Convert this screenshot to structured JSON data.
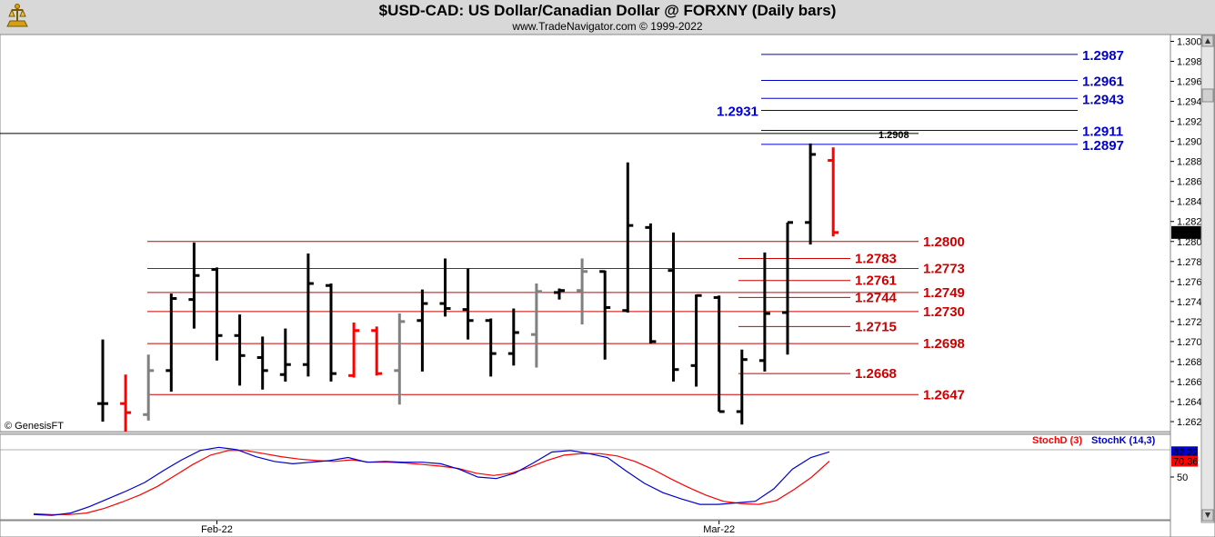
{
  "header": {
    "title": "$USD-CAD:  US Dollar/Canadian Dollar @ FORXNY  (Daily bars)",
    "subtitle": "www.TradeNavigator.com © 1999-2022"
  },
  "watermark": "© GenesisFT",
  "colors": {
    "bull": "#000000",
    "bear": "#ff0000",
    "neutral": "#808080",
    "resistance": "#0000cc",
    "support": "#cc0000",
    "stochD": "#ff0000",
    "stochK": "#0000cc"
  },
  "chart_data": {
    "type": "ohlc",
    "ylim": [
      1.261,
      1.3005
    ],
    "yticks": [
      "1.3000",
      "1.2980",
      "1.2960",
      "1.2940",
      "1.2920",
      "1.2900",
      "1.2880",
      "1.2860",
      "1.2840",
      "1.2820",
      "1.2800",
      "1.2780",
      "1.2760",
      "1.2740",
      "1.2720",
      "1.2700",
      "1.2680",
      "1.2660",
      "1.2640",
      "1.2620"
    ],
    "xlabels": [
      {
        "label": "Feb-22",
        "bar": 5
      },
      {
        "label": "Mar-22",
        "bar": 27
      }
    ],
    "last_price": "1.2809",
    "bars": [
      {
        "o": 1.2638,
        "h": 1.2702,
        "l": 1.262,
        "c": 1.2638,
        "col": "bull"
      },
      {
        "o": 1.2638,
        "h": 1.2667,
        "l": 1.261,
        "c": 1.2629,
        "col": "bear"
      },
      {
        "o": 1.2627,
        "h": 1.2687,
        "l": 1.2621,
        "c": 1.2671,
        "col": "neutral"
      },
      {
        "o": 1.2671,
        "h": 1.2748,
        "l": 1.265,
        "c": 1.2743,
        "col": "bull"
      },
      {
        "o": 1.2742,
        "h": 1.2799,
        "l": 1.2713,
        "c": 1.2766,
        "col": "bull"
      },
      {
        "o": 1.2772,
        "h": 1.2774,
        "l": 1.2681,
        "c": 1.2706,
        "col": "bull"
      },
      {
        "o": 1.2706,
        "h": 1.2727,
        "l": 1.2656,
        "c": 1.2686,
        "col": "bull"
      },
      {
        "o": 1.2684,
        "h": 1.2705,
        "l": 1.2652,
        "c": 1.2671,
        "col": "bull"
      },
      {
        "o": 1.2667,
        "h": 1.2713,
        "l": 1.266,
        "c": 1.2677,
        "col": "bull"
      },
      {
        "o": 1.2677,
        "h": 1.2788,
        "l": 1.2665,
        "c": 1.2758,
        "col": "bull"
      },
      {
        "o": 1.2756,
        "h": 1.2758,
        "l": 1.266,
        "c": 1.2668,
        "col": "bull"
      },
      {
        "o": 1.2666,
        "h": 1.2719,
        "l": 1.2664,
        "c": 1.2711,
        "col": "bear"
      },
      {
        "o": 1.2711,
        "h": 1.2715,
        "l": 1.2666,
        "c": 1.2668,
        "col": "bear"
      },
      {
        "o": 1.2671,
        "h": 1.2728,
        "l": 1.2637,
        "c": 1.272,
        "col": "neutral"
      },
      {
        "o": 1.2721,
        "h": 1.2752,
        "l": 1.267,
        "c": 1.2738,
        "col": "bull"
      },
      {
        "o": 1.2738,
        "h": 1.2783,
        "l": 1.2725,
        "c": 1.2733,
        "col": "bull"
      },
      {
        "o": 1.2732,
        "h": 1.2773,
        "l": 1.2702,
        "c": 1.2721,
        "col": "bull"
      },
      {
        "o": 1.2721,
        "h": 1.2723,
        "l": 1.2665,
        "c": 1.2688,
        "col": "bull"
      },
      {
        "o": 1.2688,
        "h": 1.2733,
        "l": 1.2676,
        "c": 1.2709,
        "col": "bull"
      },
      {
        "o": 1.2707,
        "h": 1.2758,
        "l": 1.2674,
        "c": 1.275,
        "col": "neutral"
      },
      {
        "o": 1.2749,
        "h": 1.2753,
        "l": 1.2742,
        "c": 1.2751,
        "col": "bull"
      },
      {
        "o": 1.2751,
        "h": 1.2783,
        "l": 1.2717,
        "c": 1.277,
        "col": "neutral"
      },
      {
        "o": 1.277,
        "h": 1.2771,
        "l": 1.2682,
        "c": 1.2734,
        "col": "bull"
      },
      {
        "o": 1.2731,
        "h": 1.2879,
        "l": 1.2729,
        "c": 1.2816,
        "col": "bull"
      },
      {
        "o": 1.2814,
        "h": 1.2818,
        "l": 1.2698,
        "c": 1.27,
        "col": "bull"
      },
      {
        "o": 1.2771,
        "h": 1.2809,
        "l": 1.266,
        "c": 1.2672,
        "col": "bull"
      },
      {
        "o": 1.2676,
        "h": 1.2747,
        "l": 1.2655,
        "c": 1.2746,
        "col": "bull"
      },
      {
        "o": 1.2744,
        "h": 1.2746,
        "l": 1.263,
        "c": 1.263,
        "col": "bull"
      },
      {
        "o": 1.263,
        "h": 1.2692,
        "l": 1.2617,
        "c": 1.2682,
        "col": "bull"
      },
      {
        "o": 1.2681,
        "h": 1.2789,
        "l": 1.267,
        "c": 1.2728,
        "col": "bull"
      },
      {
        "o": 1.2729,
        "h": 1.2819,
        "l": 1.2687,
        "c": 1.2819,
        "col": "bull"
      },
      {
        "o": 1.2819,
        "h": 1.2898,
        "l": 1.2797,
        "c": 1.2887,
        "col": "bull"
      },
      {
        "o": 1.2881,
        "h": 1.2894,
        "l": 1.2805,
        "c": 1.2809,
        "col": "bear"
      }
    ],
    "resistance": [
      {
        "value": 1.2987,
        "label": "1.2987",
        "side": "right"
      },
      {
        "value": 1.2961,
        "label": "1.2961",
        "side": "right"
      },
      {
        "value": 1.2943,
        "label": "1.2943",
        "side": "right"
      },
      {
        "value": 1.2931,
        "label": "1.2931",
        "side": "left"
      },
      {
        "value": 1.2911,
        "label": "1.2911",
        "side": "right"
      },
      {
        "value": 1.2897,
        "label": "1.2897",
        "side": "right"
      }
    ],
    "horizontal_line": {
      "value": 1.2908,
      "label": "1.2908"
    },
    "support_long": [
      {
        "value": 1.28,
        "label": "1.2800"
      },
      {
        "value": 1.2773,
        "label": "1.2773"
      },
      {
        "value": 1.2749,
        "label": "1.2749"
      },
      {
        "value": 1.273,
        "label": "1.2730"
      },
      {
        "value": 1.2698,
        "label": "1.2698"
      },
      {
        "value": 1.2647,
        "label": "1.2647"
      }
    ],
    "support_short": [
      {
        "value": 1.2783,
        "label": "1.2783"
      },
      {
        "value": 1.2761,
        "label": "1.2761"
      },
      {
        "value": 1.2744,
        "label": "1.2744"
      },
      {
        "value": 1.2715,
        "label": "1.2715"
      },
      {
        "value": 1.2668,
        "label": "1.2668"
      }
    ],
    "stochastic": {
      "ylim": [
        0,
        100
      ],
      "yticks": [
        "50"
      ],
      "stochD_label": "StochD (3)",
      "stochK_label": "StochK (14,3)",
      "stochD_value": "70.36",
      "stochK_value": "82.22",
      "stochD": [
        3,
        2,
        2,
        4,
        10,
        18,
        27,
        38,
        52,
        66,
        78,
        84,
        84,
        80,
        76,
        73,
        71,
        70,
        72,
        69,
        69,
        68,
        66,
        64,
        61,
        55,
        52,
        55,
        62,
        71,
        78,
        80,
        80,
        77,
        70,
        60,
        48,
        37,
        27,
        19,
        16,
        15,
        20,
        34,
        50,
        70.36
      ],
      "stochK": [
        2,
        1,
        4,
        12,
        22,
        32,
        43,
        58,
        72,
        84,
        88,
        85,
        76,
        70,
        67,
        69,
        71,
        75,
        69,
        70,
        69,
        69,
        67,
        60,
        50,
        48,
        55,
        68,
        82,
        84,
        80,
        75,
        58,
        42,
        30,
        22,
        15,
        15,
        17,
        19,
        35,
        60,
        75,
        82.22
      ]
    }
  }
}
